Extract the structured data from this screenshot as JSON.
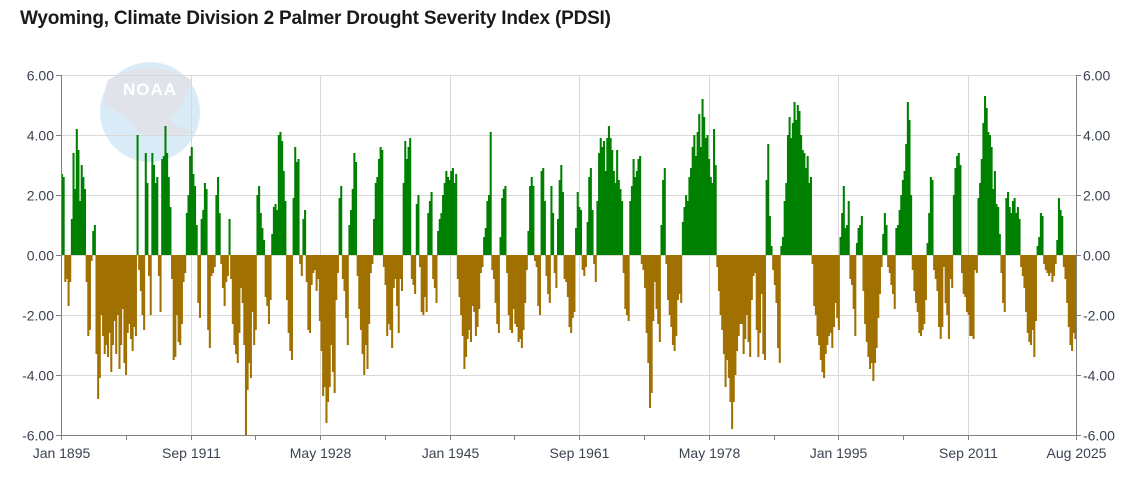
{
  "title": "Wyoming, Climate Division 2 Palmer Drought Severity Index (PDSI)",
  "watermark": "NOAA",
  "colors": {
    "positive": "#008000",
    "negative": "#a07000",
    "grid": "#d9d9d9",
    "axis": "#808080",
    "watermark_circle": "#d5e8f7",
    "watermark_bird": "#dde0e8"
  },
  "chart_data": {
    "type": "bar",
    "title": "Wyoming, Climate Division 2 Palmer Drought Severity Index (PDSI)",
    "xlabel": "",
    "ylabel": "",
    "x_start": "Jan 1895",
    "x_end": "Aug 2025",
    "sampling": "approx. 4-month steps, values read from chart envelope",
    "ylim": [
      -6,
      6
    ],
    "yticks": [
      "6.00",
      "4.00",
      "2.00",
      "0.00",
      "-2.00",
      "-4.00",
      "-6.00"
    ],
    "ytick_values": [
      6,
      4,
      2,
      0,
      -2,
      -4,
      -6
    ],
    "xticks": [
      "Jan 1895",
      "Sep 1911",
      "May 1928",
      "Jan 1945",
      "Sep 1961",
      "May 1978",
      "Jan 1995",
      "Sep 2011",
      "Aug 2025"
    ],
    "xtick_positions": [
      0,
      200,
      400,
      600,
      800,
      1000,
      1200,
      1400,
      1567
    ],
    "grid": true,
    "legend": "none",
    "values": [
      2.7,
      2.6,
      -0.9,
      -0.8,
      -1.7,
      -0.9,
      1.2,
      3.4,
      2.2,
      4.2,
      3.5,
      1.8,
      3.0,
      2.6,
      2.2,
      -0.9,
      -2.7,
      -2.5,
      -0.2,
      0.8,
      1.0,
      -3.3,
      -4.8,
      -4.1,
      -2.0,
      -2.7,
      -3.3,
      -3.0,
      -3.4,
      -2.6,
      -3.9,
      -3.0,
      -2.2,
      -3.3,
      -2.0,
      -3.8,
      -3.0,
      -1.8,
      -3.6,
      -4.0,
      -2.6,
      -2.3,
      -2.8,
      -3.2,
      -2.4,
      -2.7,
      4.0,
      -0.5,
      -1.2,
      -2.0,
      -2.5,
      3.4,
      2.4,
      -0.7,
      -2.0,
      3.4,
      3.0,
      2.4,
      2.6,
      -0.7,
      -1.9,
      3.2,
      3.3,
      4.3,
      3.4,
      2.6,
      1.6,
      -0.8,
      -3.5,
      -3.4,
      -2.0,
      -2.9,
      -3.0,
      -2.3,
      -0.9,
      -0.6,
      1.4,
      2.0,
      3.3,
      3.6,
      2.7,
      2.3,
      1.0,
      -1.6,
      -2.1,
      1.2,
      1.5,
      2.4,
      2.2,
      -2.5,
      -3.1,
      -0.7,
      -0.6,
      -0.4,
      2.0,
      2.6,
      1.4,
      -0.3,
      -1.1,
      -1.7,
      -0.9,
      -0.7,
      1.2,
      -0.8,
      -2.3,
      -3.0,
      -3.3,
      -3.6,
      -2.6,
      -1.1,
      -1.6,
      -3.0,
      -6.0,
      -4.5,
      -3.6,
      -4.1,
      -1.9,
      -3.0,
      -2.5,
      2.0,
      2.3,
      1.4,
      0.9,
      0.5,
      -1.4,
      -1.7,
      -2.3,
      -1.5,
      0.7,
      1.6,
      1.7,
      1.5,
      4.0,
      4.1,
      3.8,
      2.8,
      1.8,
      -1.5,
      -2.6,
      -3.2,
      -3.5,
      1.9,
      3.6,
      3.1,
      3.2,
      -0.3,
      -0.7,
      1.2,
      1.5,
      -0.9,
      -2.5,
      -2.6,
      -1.0,
      -0.6,
      -0.5,
      -1.2,
      -0.8,
      -2.2,
      -3.2,
      -4.7,
      -4.4,
      -5.6,
      -4.9,
      -4.4,
      -3.0,
      -3.9,
      -4.6,
      -1.5,
      -0.6,
      1.9,
      2.3,
      -0.8,
      -1.2,
      -2.1,
      -3.0,
      1.0,
      1.5,
      2.2,
      3.4,
      3.1,
      -0.7,
      -1.8,
      -2.5,
      -3.3,
      -4.0,
      -3.0,
      -3.8,
      -2.3,
      -0.6,
      -0.3,
      1.2,
      2.4,
      2.6,
      3.2,
      3.6,
      3.5,
      -0.4,
      -1.0,
      -2.7,
      -2.3,
      -2.5,
      -3.1,
      -1.1,
      -0.8,
      -1.7,
      -2.6,
      -0.8,
      -1.2,
      2.4,
      3.8,
      3.2,
      3.6,
      3.9,
      -0.8,
      -1.0,
      -1.3,
      1.7,
      2.0,
      -0.4,
      -1.9,
      -2.0,
      -1.4,
      -1.9,
      1.4,
      1.8,
      2.1,
      -0.8,
      -1.1,
      -1.6,
      0.8,
      1.2,
      1.4,
      2.0,
      2.4,
      2.8,
      2.6,
      2.5,
      2.8,
      2.9,
      2.4,
      2.7,
      -0.8,
      -1.4,
      -2.0,
      -2.7,
      -3.8,
      -3.4,
      -2.8,
      -2.5,
      -2.9,
      -1.7,
      -1.9,
      -2.7,
      -2.4,
      -1.8,
      -0.6,
      -0.4,
      0.6,
      0.9,
      1.8,
      2.0,
      4.1,
      -0.5,
      -0.8,
      -1.6,
      -2.3,
      -2.6,
      0.6,
      1.9,
      2.2,
      2.3,
      -0.6,
      -2.0,
      -2.5,
      -2.6,
      -1.8,
      -2.3,
      -2.4,
      -2.9,
      -2.8,
      -3.1,
      -2.5,
      -1.6,
      -0.5,
      0.8,
      2.3,
      2.6,
      2.3,
      -0.2,
      -0.4,
      -1.7,
      -2.0,
      2.8,
      2.9,
      1.8,
      -0.7,
      -1.3,
      -1.6,
      2.3,
      1.4,
      -0.6,
      -1.1,
      1.2,
      2.5,
      3.0,
      2.1,
      -0.8,
      -0.9,
      -1.4,
      -2.4,
      -2.6,
      -2.1,
      -1.9,
      0.9,
      2.1,
      1.6,
      1.5,
      -0.5,
      -0.7,
      -0.4,
      1.1,
      2.6,
      2.9,
      1.5,
      -0.3,
      -0.9,
      1.8,
      3.4,
      3.9,
      3.6,
      3.8,
      2.8,
      3.9,
      4.3,
      3.9,
      3.5,
      2.8,
      2.4,
      3.5,
      2.5,
      2.2,
      1.8,
      -0.6,
      -1.8,
      -2.0,
      -2.2,
      1.8,
      2.3,
      3.2,
      2.6,
      2.8,
      3.2,
      3.3,
      -0.3,
      -0.5,
      -1.1,
      -2.6,
      -3.6,
      -5.1,
      -4.6,
      -2.2,
      -0.9,
      -1.8,
      -2.3,
      -2.9,
      1.0,
      2.5,
      2.9,
      -0.3,
      -1.5,
      -2.0,
      -2.4,
      -3.0,
      -3.2,
      -2.7,
      -1.5,
      -1.3,
      -1.6,
      1.1,
      1.6,
      2.0,
      1.8,
      2.6,
      2.9,
      3.6,
      4.0,
      3.3,
      4.1,
      4.7,
      3.6,
      5.2,
      4.6,
      3.9,
      4.0,
      3.2,
      2.6,
      2.4,
      4.2,
      3.0,
      -0.4,
      -1.2,
      -2.0,
      -2.5,
      -3.3,
      -4.4,
      -3.5,
      -4.1,
      -4.9,
      -5.8,
      -4.9,
      -4.0,
      -3.2,
      -2.7,
      -2.3,
      -2.3,
      -3.3,
      -2.8,
      -2.0,
      -2.9,
      -3.4,
      -1.5,
      -0.7,
      -0.6,
      -2.5,
      -3.4,
      -2.6,
      -1.3,
      -3.3,
      -3.5,
      2.5,
      3.7,
      1.3,
      0.3,
      -0.5,
      -1.0,
      -1.6,
      -3.1,
      -3.6,
      0.3,
      0.6,
      1.8,
      2.4,
      4.0,
      4.6,
      3.9,
      4.4,
      5.1,
      4.5,
      5.0,
      4.8,
      4.0,
      3.5,
      3.4,
      2.9,
      3.3,
      2.4,
      2.6,
      -0.3,
      -1.7,
      -2.0,
      -2.7,
      -3.0,
      -3.5,
      -3.9,
      -4.1,
      -3.3,
      -3.0,
      -2.7,
      -2.6,
      -3.1,
      -2.4,
      -1.6,
      -2.1,
      -2.5,
      0.6,
      1.4,
      2.3,
      0.9,
      1.0,
      1.8,
      -0.8,
      -1.0,
      -1.8,
      -2.7,
      0.4,
      0.9,
      1.0,
      1.3,
      -1.2,
      -2.3,
      -2.9,
      -3.4,
      -3.8,
      -3.6,
      -4.2,
      -3.6,
      -3.1,
      -2.1,
      -1.3,
      -0.4,
      0.7,
      1.4,
      1.0,
      -0.4,
      -0.6,
      -1.0,
      -1.3,
      -1.8,
      0.9,
      1.0,
      1.5,
      2.0,
      2.5,
      2.8,
      3.7,
      5.1,
      4.5,
      2.0,
      -0.5,
      -1.2,
      -1.6,
      -1.9,
      -2.6,
      -2.7,
      -2.5,
      -2.3,
      -1.5,
      0.4,
      1.4,
      2.6,
      2.5,
      -0.5,
      -0.8,
      -1.2,
      -2.4,
      -2.8,
      -2.4,
      -0.4,
      -1.6,
      -2.0,
      -2.8,
      -0.8,
      -1.1,
      2.0,
      2.9,
      3.3,
      3.4,
      3.0,
      -0.6,
      -1.3,
      -1.4,
      -1.9,
      -2.0,
      -2.7,
      -2.7,
      -2.8,
      -0.5,
      -0.6,
      1.9,
      2.4,
      3.2,
      4.4,
      5.3,
      4.9,
      4.1,
      4.0,
      3.6,
      2.2,
      2.8,
      1.7,
      1.6,
      0.7,
      -0.6,
      -1.6,
      -1.9,
      1.9,
      2.1,
      1.6,
      1.4,
      1.8,
      1.9,
      1.4,
      1.6,
      1.2,
      -0.4,
      -0.7,
      -1.1,
      -1.9,
      -2.6,
      -2.9,
      -3.0,
      -2.5,
      -3.4,
      -2.2,
      0.3,
      0.6,
      1.4,
      1.3,
      -0.3,
      -0.5,
      -0.6,
      -0.7,
      -0.6,
      -0.9,
      -0.7,
      -0.3,
      0.5,
      1.9,
      1.5,
      1.3,
      -0.4,
      -0.8,
      -1.6,
      -2.4,
      -3.0,
      -3.2,
      -2.6,
      -2.8
    ]
  },
  "y_axis_left_labels": [
    "6.00",
    "4.00",
    "2.00",
    "0.00",
    "-2.00",
    "-4.00",
    "-6.00"
  ],
  "y_axis_right_labels": [
    "6.00",
    "4.00",
    "2.00",
    "0.00",
    "-2.00",
    "-4.00",
    "-6.00"
  ]
}
